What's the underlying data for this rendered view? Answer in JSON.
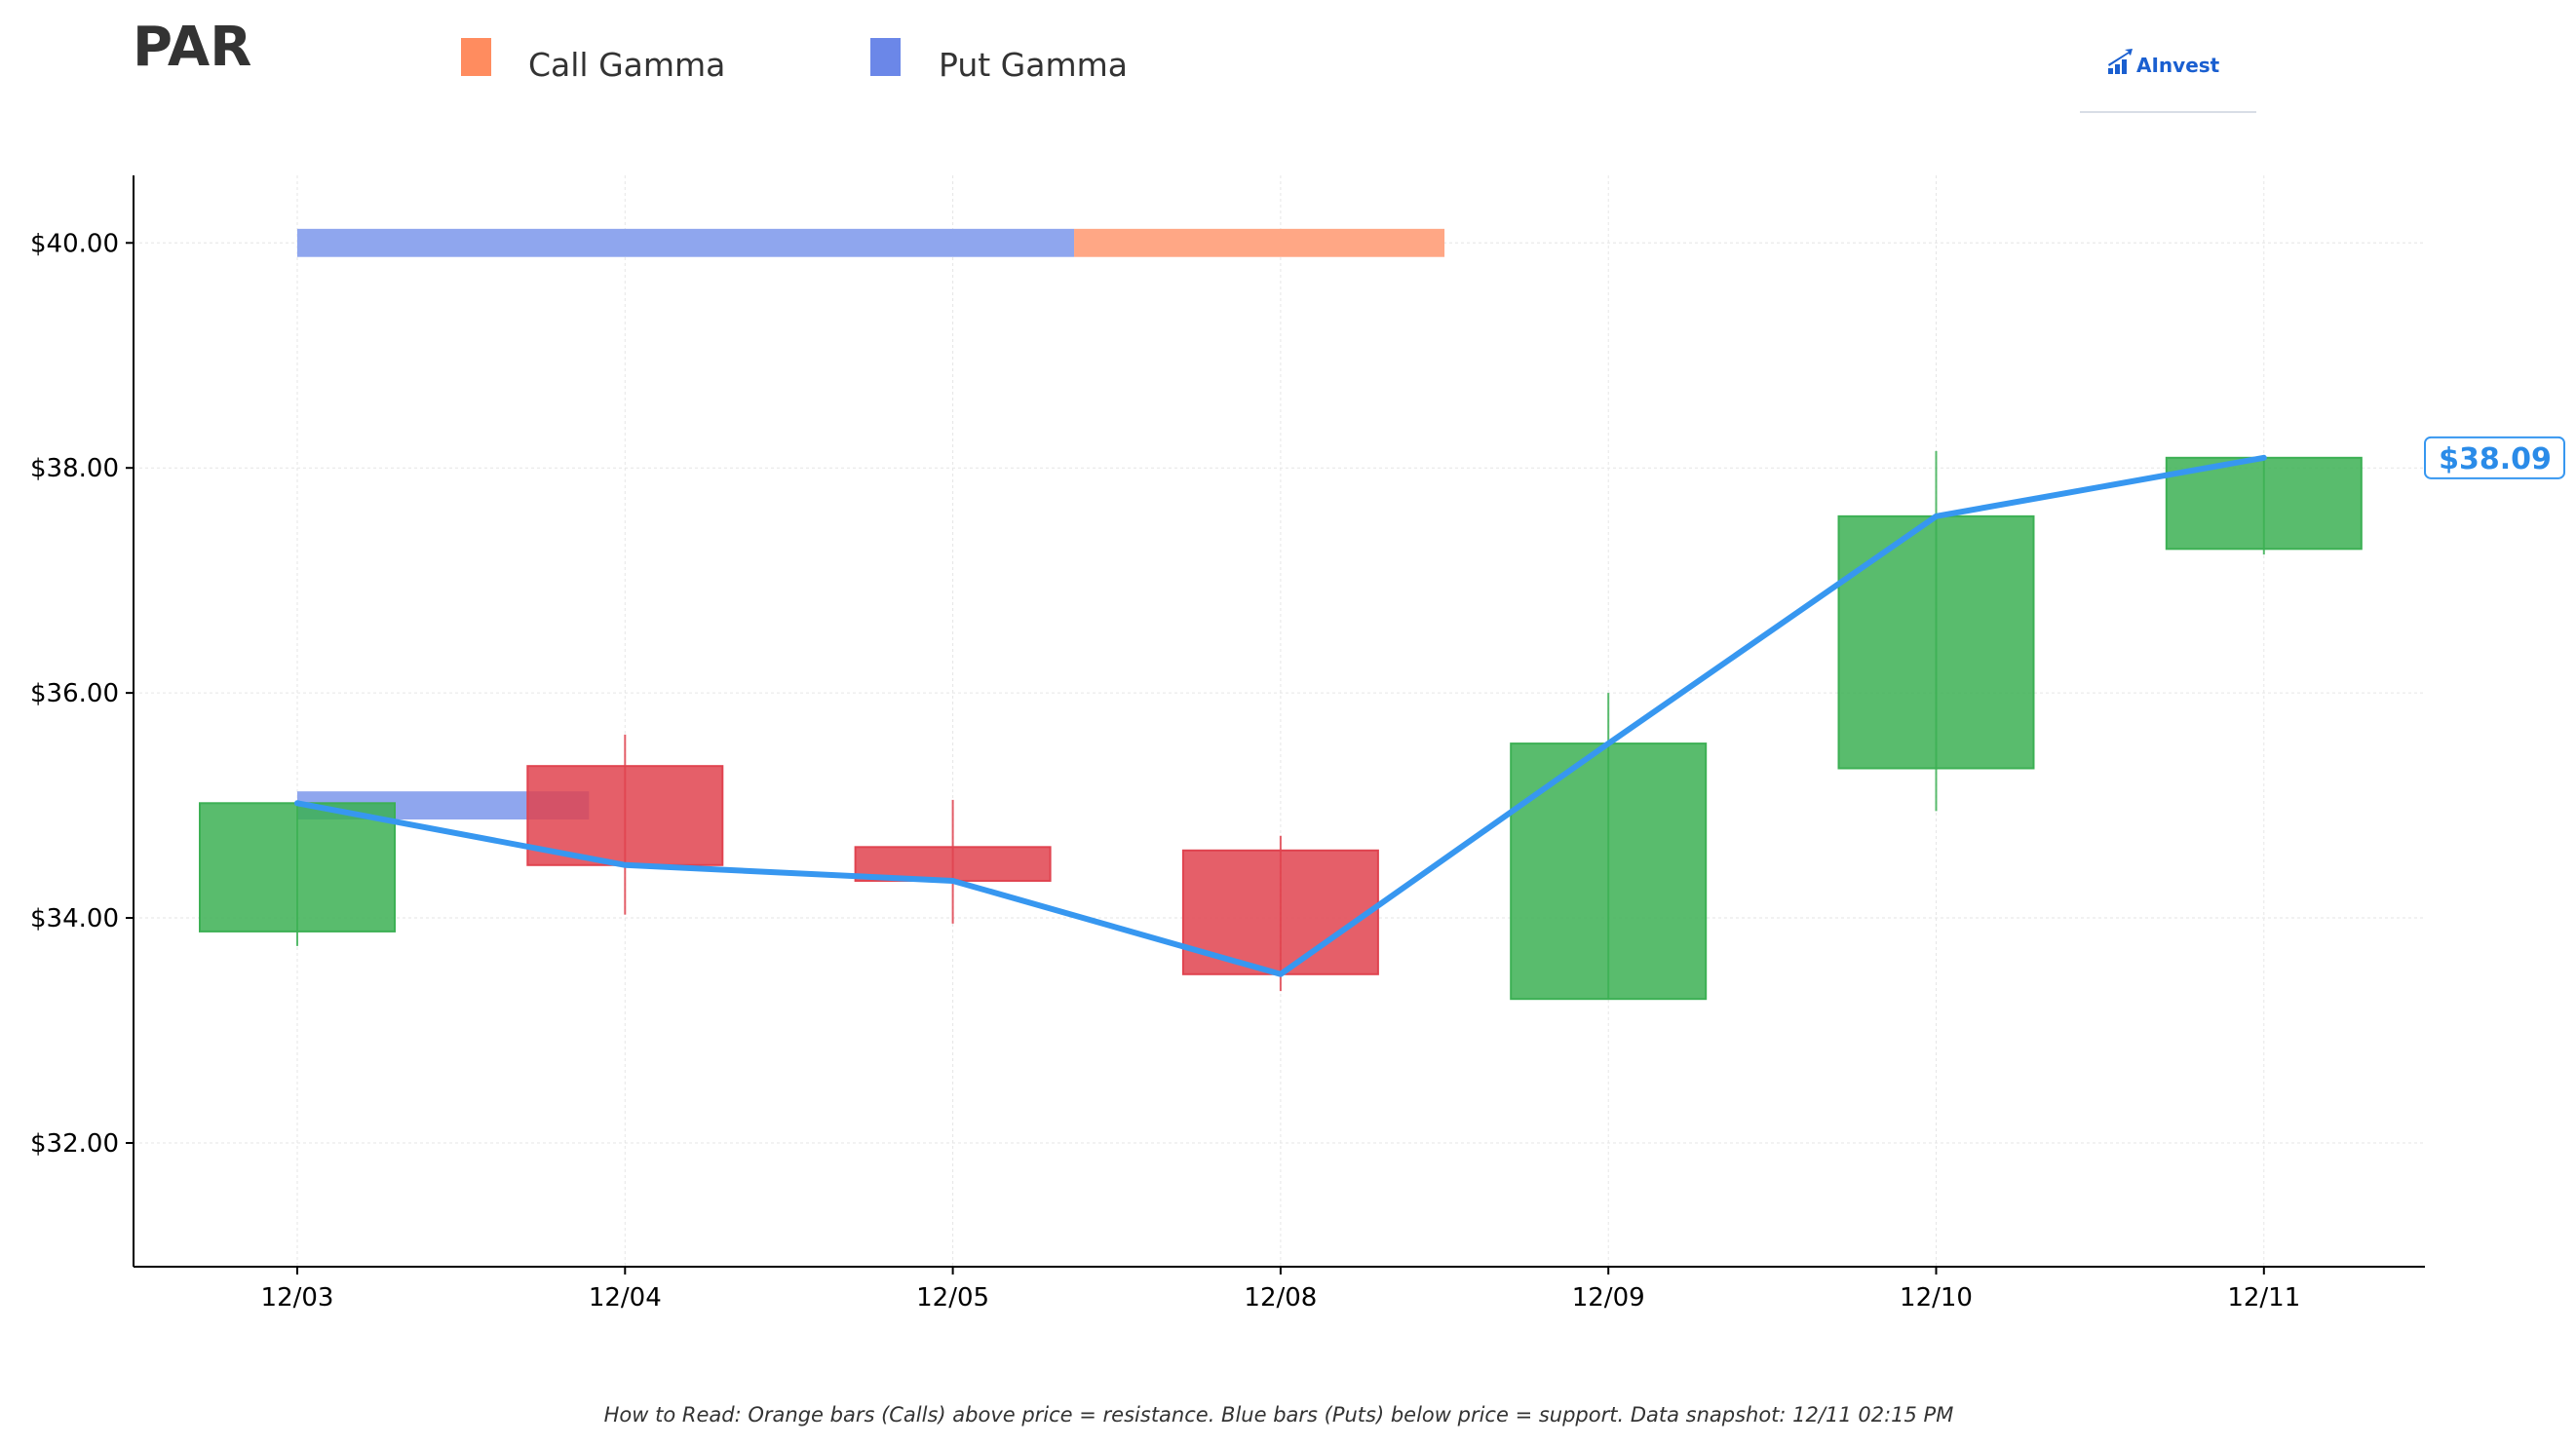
{
  "header": {
    "ticker": "PAR",
    "logo_text": "AInvest"
  },
  "legend": {
    "items": [
      {
        "label": "Call Gamma",
        "color": "#ff8c5f"
      },
      {
        "label": "Put Gamma",
        "color": "#6b87e8"
      }
    ]
  },
  "footnote": "How to Read: Orange bars (Calls) above price = resistance. Blue bars (Puts) below price = support. Data snapshot: 12/11 02:15 PM",
  "chart_data": {
    "type": "candlestick",
    "title": "PAR",
    "categories": [
      "12/03",
      "12/04",
      "12/05",
      "12/08",
      "12/09",
      "12/10",
      "12/11"
    ],
    "ohlc": [
      {
        "date": "12/03",
        "open": 33.88,
        "high": 35.0,
        "low": 33.75,
        "close": 35.02
      },
      {
        "date": "12/04",
        "open": 35.35,
        "high": 35.63,
        "low": 34.03,
        "close": 34.47
      },
      {
        "date": "12/05",
        "open": 34.63,
        "high": 35.05,
        "low": 33.95,
        "close": 34.33
      },
      {
        "date": "12/08",
        "open": 34.6,
        "high": 34.73,
        "low": 33.35,
        "close": 33.5
      },
      {
        "date": "12/09",
        "open": 33.28,
        "high": 36.0,
        "low": 33.28,
        "close": 35.55
      },
      {
        "date": "12/10",
        "open": 35.33,
        "high": 38.15,
        "low": 34.95,
        "close": 37.57
      },
      {
        "date": "12/11",
        "open": 37.28,
        "high": 38.1,
        "low": 37.23,
        "close": 38.09
      }
    ],
    "price_line": {
      "name": "Price",
      "values": [
        35.02,
        34.47,
        34.33,
        33.5,
        35.55,
        37.57,
        38.09
      ],
      "color": "#3797f0"
    },
    "gamma_bars": [
      {
        "type": "put",
        "strike": 40.0,
        "x_start": 0.0,
        "x_end": 2.37,
        "color": "#8fa6ee"
      },
      {
        "type": "call",
        "strike": 40.0,
        "x_start": 2.37,
        "x_end": 3.5,
        "color": "#ffa785"
      },
      {
        "type": "put",
        "strike": 35.0,
        "x_start": 0.0,
        "x_end": 0.89,
        "color": "#8fa6ee"
      }
    ],
    "current_price_label": "$38.09",
    "y_ticks": [
      32.0,
      34.0,
      36.0,
      38.0,
      40.0
    ],
    "y_tick_labels": [
      "$32.00",
      "$34.00",
      "$36.00",
      "$38.00",
      "$40.00"
    ],
    "ylim": [
      30.9,
      40.6
    ],
    "xlabel": "",
    "ylabel": "",
    "grid": true,
    "legend_position": "top",
    "colors": {
      "up": "#3cb054",
      "down": "#e0434f",
      "line": "#3797f0",
      "tag_text": "#2a8be8"
    }
  }
}
